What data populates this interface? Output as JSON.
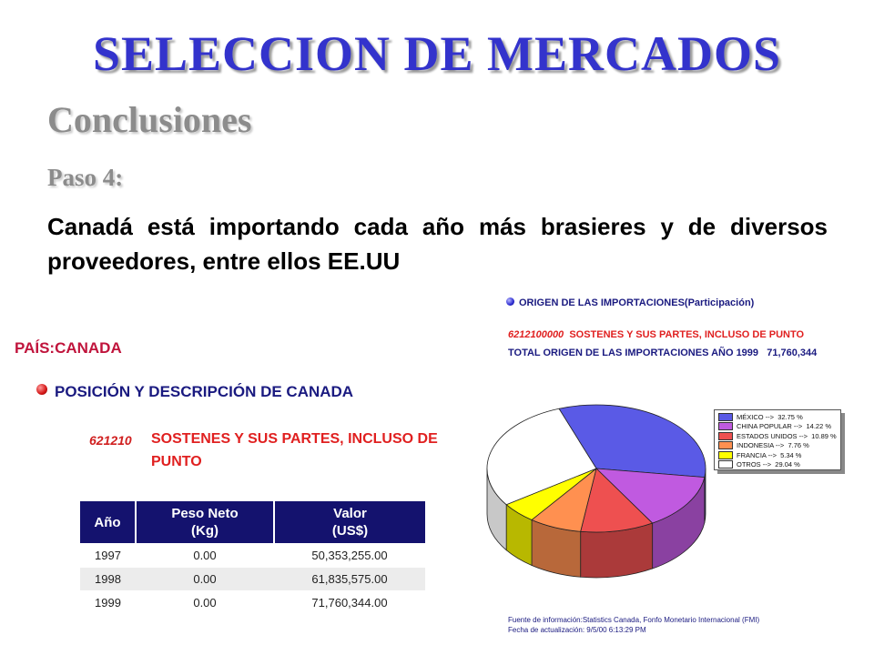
{
  "slide": {
    "title": "SELECCION DE MERCADOS",
    "subtitle": "Conclusiones",
    "step": "Paso 4:",
    "body": "Canadá está importando cada año más brasieres y de diversos proveedores, entre ellos EE.UU"
  },
  "left_panel": {
    "country": "PAÍS:CANADA",
    "position_label": "POSICIÓN Y DESCRIPCIÓN DE CANADA",
    "code": "621210",
    "description": "SOSTENES Y SUS PARTES, INCLUSO DE PUNTO",
    "table": {
      "headers": [
        {
          "line1": "Año",
          "line2": ""
        },
        {
          "line1": "Peso Neto",
          "line2": "(Kg)"
        },
        {
          "line1": "Valor",
          "line2": "(US$)"
        }
      ],
      "rows": [
        [
          "1997",
          "0.00",
          "50,353,255.00"
        ],
        [
          "1998",
          "0.00",
          "61,835,575.00"
        ],
        [
          "1999",
          "0.00",
          "71,760,344.00"
        ]
      ]
    }
  },
  "right_panel": {
    "title": "ORIGEN DE LAS IMPORTACIONES(Participación)",
    "position_code": "6212100000",
    "position_desc": "SOSTENES Y SUS PARTES, INCLUSO DE PUNTO",
    "total_label": "TOTAL ORIGEN DE LAS IMPORTACIONES AÑO 1999",
    "total_value": "71,760,344",
    "source_line1": "Fuente de información:Statistics Canada, Fonfo Monetario Internacional (FMI)",
    "source_line2": "Fecha de actualización: 9/5/00 6:13:29 PM"
  },
  "chart_data": {
    "type": "pie",
    "title": "ORIGEN DE LAS IMPORTACIONES(Participación)",
    "slices": [
      {
        "label": "MÉXICO -->",
        "pct_text": "32.75 %",
        "value": 32.75,
        "color": "#5a5ae6"
      },
      {
        "label": "CHINA POPULAR -->",
        "pct_text": "14.22 %",
        "value": 14.22,
        "color": "#c05ae0"
      },
      {
        "label": "ESTADOS UNIDOS -->",
        "pct_text": "10.89 %",
        "value": 10.89,
        "color": "#ee5050"
      },
      {
        "label": "INDONESIA -->",
        "pct_text": "7.76 %",
        "value": 7.76,
        "color": "#ff9050"
      },
      {
        "label": "FRANCIA -->",
        "pct_text": "5.34 %",
        "value": 5.34,
        "color": "#ffff00"
      },
      {
        "label": "OTROS -->",
        "pct_text": "29.04 %",
        "value": 29.04,
        "color": "#ffffff"
      }
    ],
    "legend_placement": "right"
  }
}
